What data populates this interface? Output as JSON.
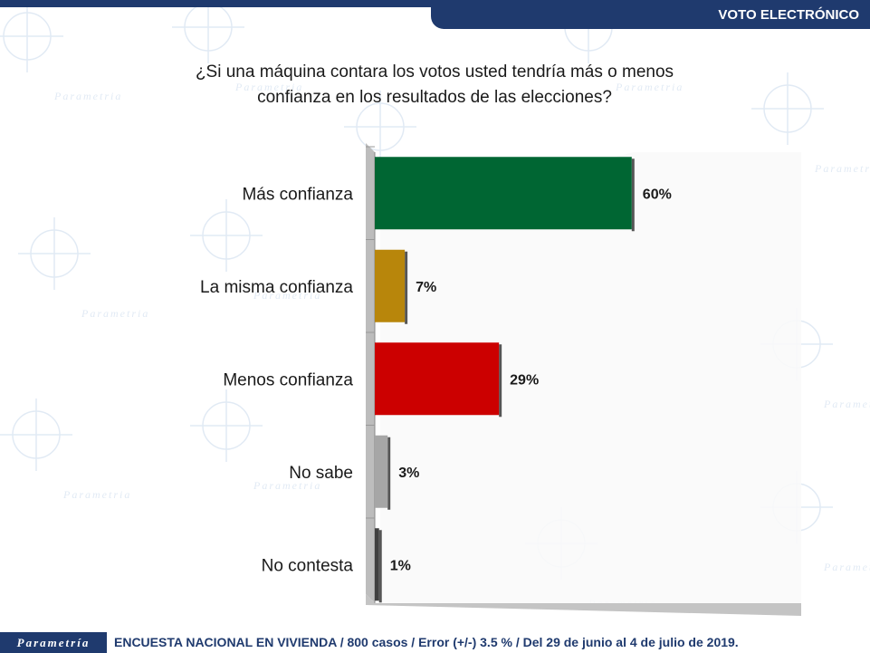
{
  "header": {
    "section_title": "VOTO ELECTRÓNICO"
  },
  "question": {
    "line1": "¿Si una máquina contara los votos usted tendría más o menos",
    "line2": "confianza en los resultados de las elecciones?"
  },
  "chart_data": {
    "type": "bar",
    "orientation": "horizontal",
    "title": "¿Si una máquina contara los votos usted tendría más o menos confianza en los resultados de las elecciones?",
    "categories": [
      "Más confianza",
      "La misma confianza",
      "Menos confianza",
      "No sabe",
      "No contesta"
    ],
    "values": [
      60,
      7,
      29,
      3,
      1
    ],
    "value_labels": [
      "60%",
      "7%",
      "29%",
      "3%",
      "1%"
    ],
    "colors": [
      "#006633",
      "#b8860b",
      "#cc0000",
      "#a6a6a6",
      "#404040"
    ],
    "xlim": [
      0,
      100
    ],
    "grid": false,
    "legend": "none"
  },
  "footer": {
    "brand": "Parametría",
    "source": "ENCUESTA NACIONAL EN VIVIENDA / 800 casos / Error (+/-) 3.5 % / Del 29 de junio al 4 de julio de 2019."
  },
  "watermark": {
    "text": "Parametria"
  }
}
